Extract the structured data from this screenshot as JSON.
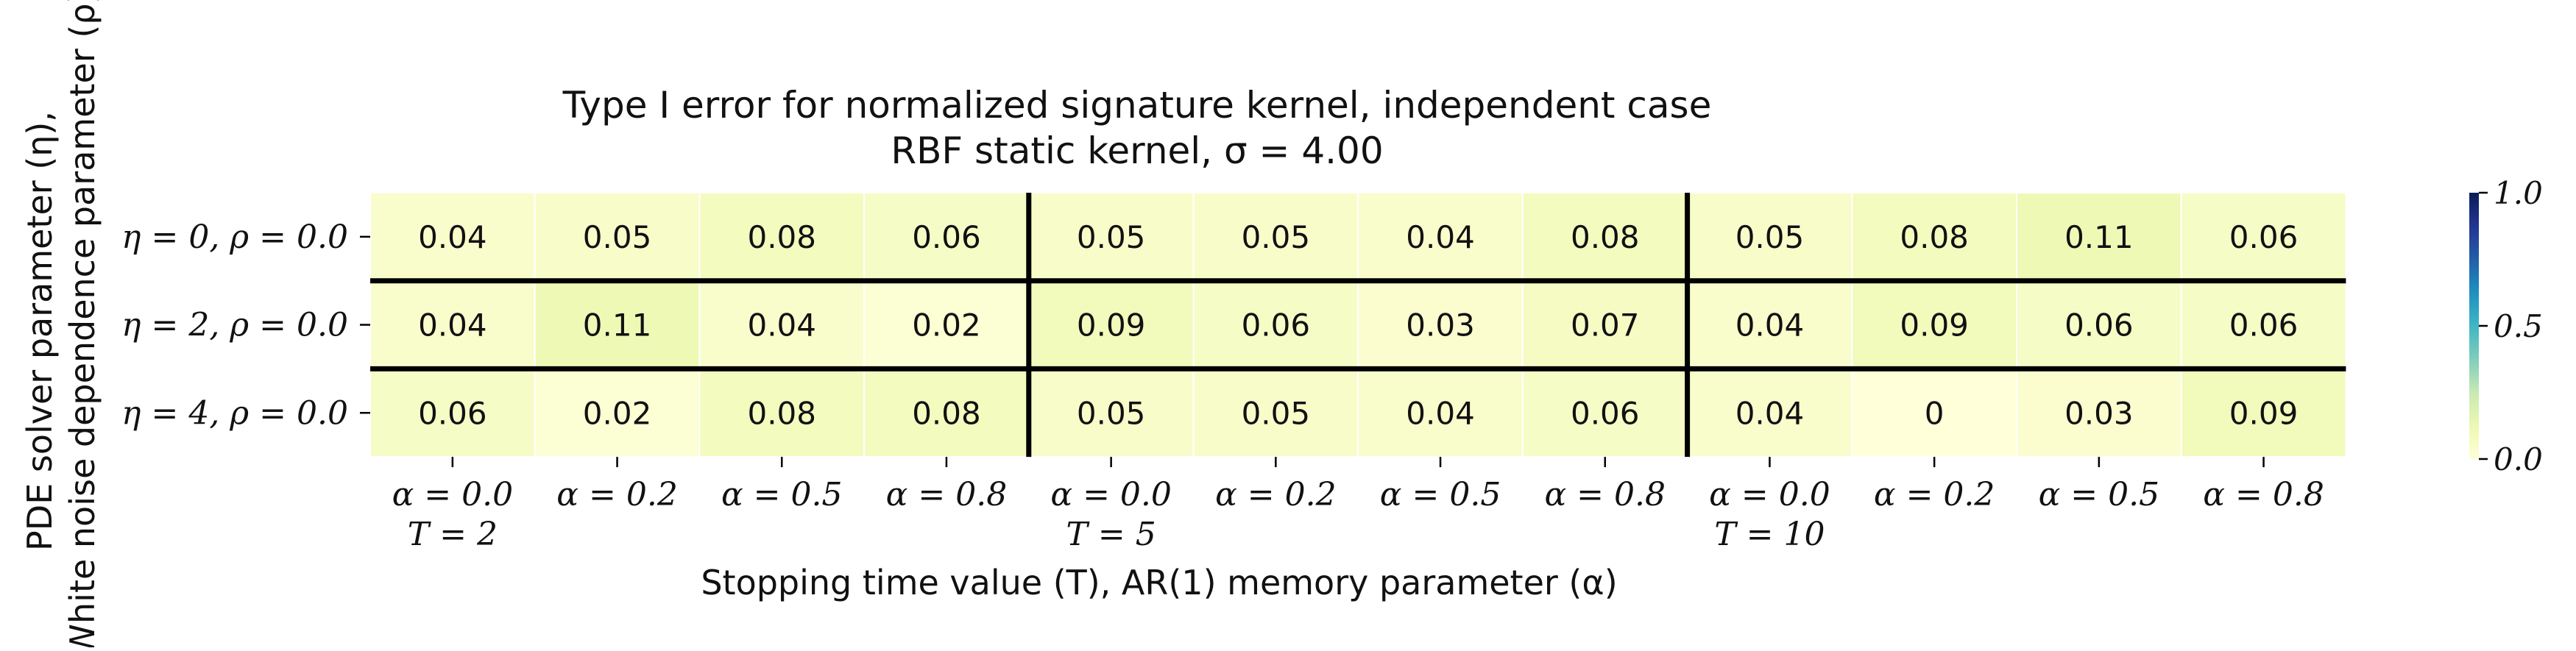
{
  "chart_data": {
    "type": "heatmap",
    "title": "Type I error for normalized signature kernel, independent case",
    "subtitle": "RBF static kernel, σ = 4.00",
    "xlabel": "Stopping time value (T), AR(1) memory parameter (α)",
    "ylabel": [
      "PDE solver parameter (η),",
      "White noise dependence parameter (ρ)"
    ],
    "x_tick_labels": [
      [
        "α = 0.0",
        "T = 2"
      ],
      [
        "α = 0.2",
        ""
      ],
      [
        "α = 0.5",
        ""
      ],
      [
        "α = 0.8",
        ""
      ],
      [
        "α = 0.0",
        "T = 5"
      ],
      [
        "α = 0.2",
        ""
      ],
      [
        "α = 0.5",
        ""
      ],
      [
        "α = 0.8",
        ""
      ],
      [
        "α = 0.0",
        "T = 10"
      ],
      [
        "α = 0.2",
        ""
      ],
      [
        "α = 0.5",
        ""
      ],
      [
        "α = 0.8",
        ""
      ]
    ],
    "y_tick_labels": [
      "η = 0, ρ = 0.0",
      "η = 2, ρ = 0.0",
      "η = 4, ρ = 0.0"
    ],
    "values": [
      [
        0.04,
        0.05,
        0.08,
        0.06,
        0.05,
        0.05,
        0.04,
        0.08,
        0.05,
        0.08,
        0.11,
        0.06
      ],
      [
        0.04,
        0.11,
        0.04,
        0.02,
        0.09,
        0.06,
        0.03,
        0.07,
        0.04,
        0.09,
        0.06,
        0.06
      ],
      [
        0.06,
        0.02,
        0.08,
        0.08,
        0.05,
        0.05,
        0.04,
        0.06,
        0.04,
        0,
        0.03,
        0.09
      ]
    ],
    "colormap": "YlGnBu",
    "colorbar": {
      "range": [
        0.0,
        1.0
      ],
      "tick_labels": [
        "0.0",
        "0.5",
        "1.0"
      ]
    },
    "group_separators_after_columns": [
      4,
      8
    ],
    "row_separators": true
  }
}
